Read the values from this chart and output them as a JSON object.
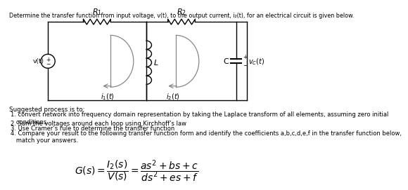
{
  "title_text": "Determine the transfer function from input voltage, v(t), to the output current, i₂(t), for an electrical circuit is given below.",
  "suggested_text": "Suggested process is to:",
  "steps": [
    "1. convert network into frequency domain representation by taking the Laplace transform of all elements, assuming zero initial\n   conditions.",
    "2. Sum the voltages around each loop using Kirchhoff’s law",
    "3. Use Cramer’s rule to determine the transfer function",
    "4. Compare your result to the following transfer function form and identify the coefficients a,b,c,d,e,f in the transfer function below,\n   match your answers."
  ],
  "bg_color": "#ffffff",
  "text_color": "#000000",
  "loop_color": "#888888"
}
